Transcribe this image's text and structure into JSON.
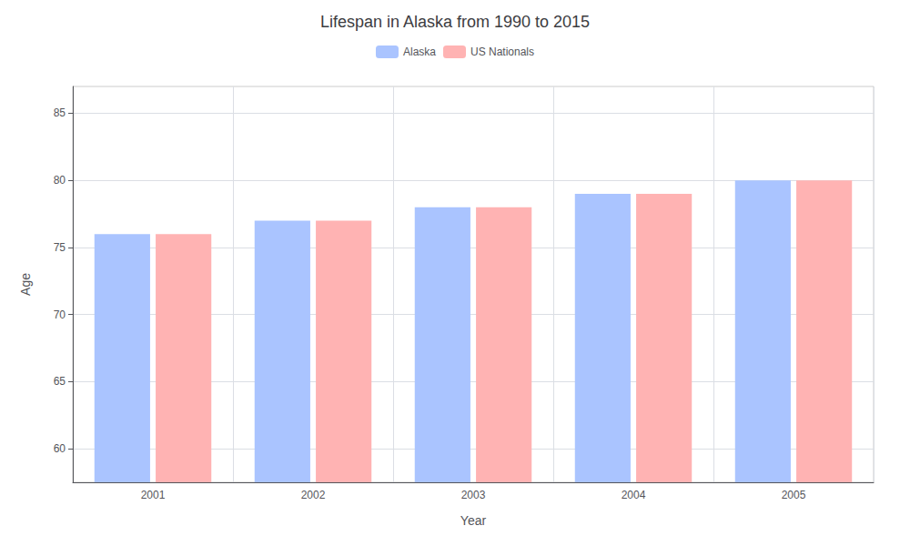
{
  "chart_data": {
    "type": "bar",
    "title": "Lifespan in Alaska from 1990 to 2015",
    "xlabel": "Year",
    "ylabel": "Age",
    "categories": [
      "2001",
      "2002",
      "2003",
      "2004",
      "2005"
    ],
    "series": [
      {
        "name": "Alaska",
        "color": "#aac4ff",
        "values": [
          76,
          77,
          78,
          79,
          80
        ]
      },
      {
        "name": "US Nationals",
        "color": "#ffb3b3",
        "values": [
          76,
          77,
          78,
          79,
          80
        ]
      }
    ],
    "ylim": [
      57.5,
      87
    ],
    "yticks": [
      60,
      65,
      70,
      75,
      80,
      85
    ],
    "grid": true,
    "legend": "top"
  }
}
